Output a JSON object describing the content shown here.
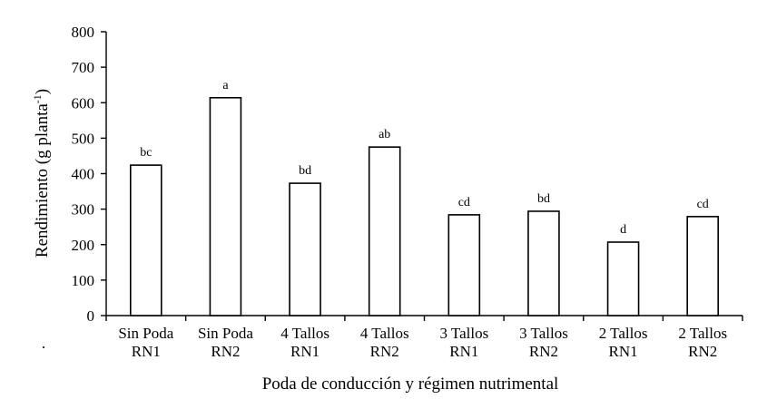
{
  "chart_data": {
    "type": "bar",
    "categories": [
      [
        "Sin Poda",
        "RN1"
      ],
      [
        "Sin Poda",
        "RN2"
      ],
      [
        "4 Tallos",
        "RN1"
      ],
      [
        "4 Tallos",
        "RN2"
      ],
      [
        "3 Tallos",
        "RN1"
      ],
      [
        "3 Tallos",
        "RN2"
      ],
      [
        "2 Tallos",
        "RN1"
      ],
      [
        "2 Tallos",
        "RN2"
      ]
    ],
    "values": [
      424,
      614,
      373,
      475,
      284,
      294,
      207,
      279
    ],
    "data_labels": [
      "bc",
      "a",
      "bd",
      "ab",
      "cd",
      "bd",
      "d",
      "cd"
    ],
    "title": "",
    "xlabel": "Poda de conducción y régimen nutrimental",
    "ylabel": "Rendimiento  (g planta",
    "ylabel_superscript": "-1",
    "ylabel_suffix": ")",
    "ylim": [
      0,
      800
    ],
    "yticks": [
      0,
      100,
      200,
      300,
      400,
      500,
      600,
      700,
      800
    ],
    "grid": false,
    "legend": "none",
    "bar_fill": "#ffffff",
    "bar_stroke": "#000000"
  },
  "footnote_mark": "."
}
